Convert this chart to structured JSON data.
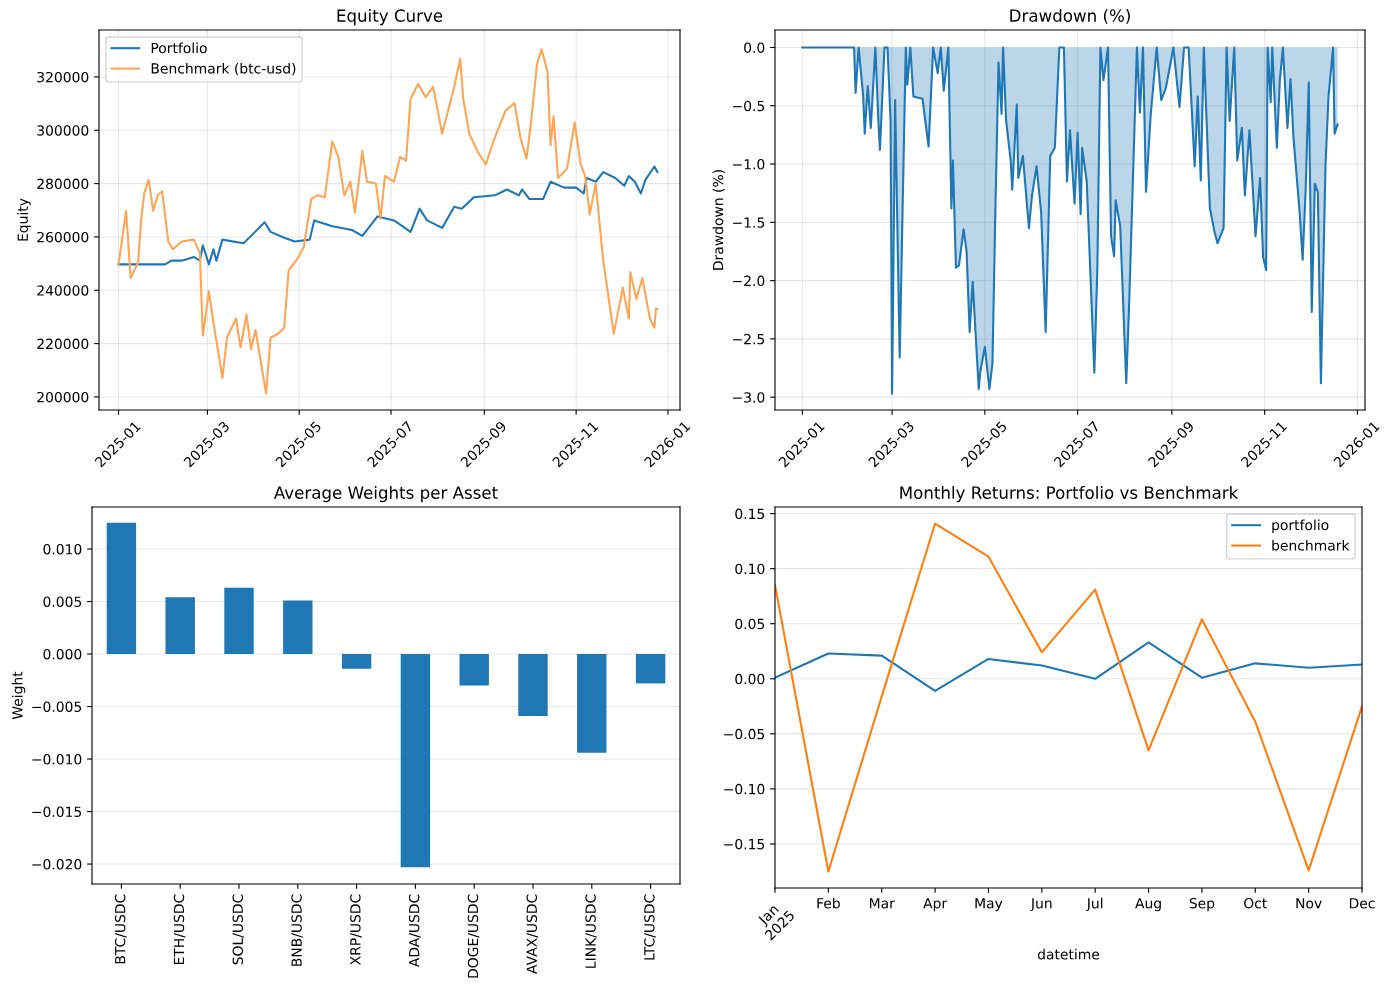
{
  "chart_data": [
    {
      "type": "line",
      "title": "Equity Curve",
      "ylabel": "Equity",
      "grid": true,
      "legend": "top left",
      "xlim": [
        "2024-12-19",
        "2026-01-09"
      ],
      "xticks": [
        "2025-01",
        "2025-03",
        "2025-05",
        "2025-07",
        "2025-09",
        "2025-11",
        "2026-01"
      ],
      "ylim": [
        195100,
        337600
      ],
      "yticks": [
        200000,
        220000,
        240000,
        260000,
        280000,
        300000,
        320000
      ],
      "series": [
        {
          "name": "Portfolio",
          "color": "#1f77b4",
          "x": [
            "2025-01-01",
            "2025-02-01",
            "2025-02-05",
            "2025-02-12",
            "2025-02-20",
            "2025-02-24",
            "2025-02-26",
            "2025-03-02",
            "2025-03-05",
            "2025-03-07",
            "2025-03-11",
            "2025-03-25",
            "2025-03-30",
            "2025-04-08",
            "2025-04-12",
            "2025-04-21",
            "2025-04-28",
            "2025-05-08",
            "2025-05-11",
            "2025-05-23",
            "2025-06-05",
            "2025-06-12",
            "2025-06-22",
            "2025-07-03",
            "2025-07-14",
            "2025-07-20",
            "2025-07-25",
            "2025-08-04",
            "2025-08-12",
            "2025-08-17",
            "2025-08-25",
            "2025-09-08",
            "2025-09-16",
            "2025-09-24",
            "2025-09-26",
            "2025-10-01",
            "2025-10-10",
            "2025-10-15",
            "2025-10-24",
            "2025-11-01",
            "2025-11-06",
            "2025-11-08",
            "2025-11-14",
            "2025-11-19",
            "2025-11-27",
            "2025-12-03",
            "2025-12-06",
            "2025-12-10",
            "2025-12-14",
            "2025-12-17",
            "2025-12-23",
            "2025-12-25"
          ],
          "values": [
            249700,
            249700,
            251100,
            251100,
            252500,
            251100,
            256900,
            249700,
            255400,
            251100,
            259000,
            257600,
            260400,
            265500,
            261900,
            259700,
            258300,
            259000,
            266200,
            264000,
            262600,
            260400,
            267700,
            266200,
            261900,
            270600,
            266200,
            263400,
            271300,
            270600,
            274900,
            275600,
            277800,
            275600,
            277800,
            274200,
            274200,
            280700,
            278500,
            278500,
            276300,
            282100,
            280700,
            284300,
            282100,
            279200,
            282800,
            280700,
            276300,
            281400,
            286400,
            284300
          ]
        },
        {
          "name": "Benchmark (btc-usd)",
          "color": "#ffa556",
          "x": [
            "2025-01-01",
            "2025-01-06",
            "2025-01-09",
            "2025-01-14",
            "2025-01-16",
            "2025-01-18",
            "2025-01-21",
            "2025-01-24",
            "2025-01-27",
            "2025-01-30",
            "2025-02-03",
            "2025-02-06",
            "2025-02-12",
            "2025-02-20",
            "2025-02-24",
            "2025-02-26",
            "2025-03-02",
            "2025-03-05",
            "2025-03-11",
            "2025-03-14",
            "2025-03-20",
            "2025-03-23",
            "2025-03-27",
            "2025-03-30",
            "2025-04-02",
            "2025-04-09",
            "2025-04-12",
            "2025-04-17",
            "2025-04-21",
            "2025-04-24",
            "2025-04-29",
            "2025-05-04",
            "2025-05-09",
            "2025-05-13",
            "2025-05-18",
            "2025-05-23",
            "2025-05-27",
            "2025-05-31",
            "2025-06-04",
            "2025-06-07",
            "2025-06-12",
            "2025-06-15",
            "2025-06-21",
            "2025-06-24",
            "2025-06-27",
            "2025-07-03",
            "2025-07-07",
            "2025-07-11",
            "2025-07-14",
            "2025-07-19",
            "2025-07-24",
            "2025-07-29",
            "2025-08-04",
            "2025-08-12",
            "2025-08-16",
            "2025-08-18",
            "2025-08-22",
            "2025-08-28",
            "2025-09-02",
            "2025-09-07",
            "2025-09-15",
            "2025-09-21",
            "2025-09-25",
            "2025-09-29",
            "2025-10-02",
            "2025-10-06",
            "2025-10-09",
            "2025-10-13",
            "2025-10-15",
            "2025-10-17",
            "2025-10-20",
            "2025-10-26",
            "2025-10-31",
            "2025-11-04",
            "2025-11-07",
            "2025-11-10",
            "2025-11-14",
            "2025-11-19",
            "2025-11-26",
            "2025-12-02",
            "2025-12-06",
            "2025-12-07",
            "2025-12-11",
            "2025-12-15",
            "2025-12-20",
            "2025-12-23",
            "2025-12-24",
            "2025-12-25"
          ],
          "values": [
            249700,
            269800,
            244600,
            250400,
            266200,
            276300,
            281400,
            269800,
            275600,
            277100,
            258300,
            255400,
            258300,
            259000,
            254000,
            223000,
            239600,
            228000,
            207100,
            222200,
            229400,
            218600,
            230900,
            217900,
            225100,
            201300,
            222200,
            223700,
            225900,
            247500,
            251100,
            256100,
            274200,
            275600,
            274900,
            295800,
            290000,
            275600,
            280700,
            269100,
            292200,
            280700,
            280000,
            266900,
            282800,
            280700,
            290000,
            288600,
            311700,
            317400,
            312400,
            316300,
            298700,
            316300,
            326800,
            311700,
            298700,
            291500,
            287200,
            295800,
            307300,
            310200,
            297200,
            289300,
            303000,
            324700,
            330400,
            321800,
            294400,
            305200,
            282100,
            285700,
            303000,
            287200,
            282800,
            268400,
            280000,
            251100,
            223700,
            241000,
            229400,
            246800,
            236700,
            244600,
            229400,
            225900,
            233100,
            233100
          ]
        }
      ]
    },
    {
      "type": "area",
      "title": "Drawdown (%)",
      "ylabel": "Drawdown (%)",
      "grid": true,
      "xlim": [
        "2024-12-14",
        "2026-01-06"
      ],
      "xticks": [
        "2025-01",
        "2025-03",
        "2025-05",
        "2025-07",
        "2025-09",
        "2025-11",
        "2026-01"
      ],
      "ylim": [
        -3.11,
        0.15
      ],
      "yticks": [
        {
          "value": -3.0,
          "label": "−3.0"
        },
        {
          "value": -2.5,
          "label": "−2.5"
        },
        {
          "value": -2.0,
          "label": "−2.0"
        },
        {
          "value": -1.5,
          "label": "−1.5"
        },
        {
          "value": -1.0,
          "label": "−1.0"
        },
        {
          "value": -0.5,
          "label": "−0.5"
        },
        {
          "value": 0.0,
          "label": "0.0"
        }
      ],
      "series": [
        {
          "color": "#1f77b4",
          "x": [
            "2025-01-01",
            "2025-02-04",
            "2025-02-05",
            "2025-02-07",
            "2025-02-10",
            "2025-02-11",
            "2025-02-13",
            "2025-02-15",
            "2025-02-18",
            "2025-02-20",
            "2025-02-21",
            "2025-02-24",
            "2025-02-26",
            "2025-02-28",
            "2025-03-01",
            "2025-03-03",
            "2025-03-06",
            "2025-03-10",
            "2025-03-11",
            "2025-03-13",
            "2025-03-15",
            "2025-03-21",
            "2025-03-25",
            "2025-03-28",
            "2025-03-31",
            "2025-04-02",
            "2025-04-04",
            "2025-04-07",
            "2025-04-09",
            "2025-04-10",
            "2025-04-12",
            "2025-04-14",
            "2025-04-17",
            "2025-04-19",
            "2025-04-21",
            "2025-04-23",
            "2025-04-27",
            "2025-04-28",
            "2025-05-01",
            "2025-05-04",
            "2025-05-06",
            "2025-05-08",
            "2025-05-10",
            "2025-05-12",
            "2025-05-13",
            "2025-05-15",
            "2025-05-18",
            "2025-05-19",
            "2025-05-22",
            "2025-05-23",
            "2025-05-26",
            "2025-05-30",
            "2025-06-01",
            "2025-06-04",
            "2025-06-07",
            "2025-06-10",
            "2025-06-13",
            "2025-06-16",
            "2025-06-19",
            "2025-06-22",
            "2025-06-24",
            "2025-06-26",
            "2025-06-29",
            "2025-07-01",
            "2025-07-03",
            "2025-07-04",
            "2025-07-07",
            "2025-07-12",
            "2025-07-14",
            "2025-07-16",
            "2025-07-18",
            "2025-07-21",
            "2025-07-23",
            "2025-07-25",
            "2025-07-26",
            "2025-07-29",
            "2025-08-02",
            "2025-08-04",
            "2025-08-07",
            "2025-08-09",
            "2025-08-11",
            "2025-08-13",
            "2025-08-15",
            "2025-08-18",
            "2025-08-22",
            "2025-08-25",
            "2025-08-28",
            "2025-09-02",
            "2025-09-06",
            "2025-09-09",
            "2025-09-12",
            "2025-09-16",
            "2025-09-18",
            "2025-09-20",
            "2025-09-22",
            "2025-09-26",
            "2025-09-29",
            "2025-10-01",
            "2025-10-05",
            "2025-10-07",
            "2025-10-09",
            "2025-10-12",
            "2025-10-14",
            "2025-10-17",
            "2025-10-19",
            "2025-10-22",
            "2025-10-26",
            "2025-10-29",
            "2025-10-31",
            "2025-11-02",
            "2025-11-03",
            "2025-11-05",
            "2025-11-06",
            "2025-11-09",
            "2025-11-11",
            "2025-11-13",
            "2025-11-16",
            "2025-11-18",
            "2025-11-20",
            "2025-11-24",
            "2025-11-26",
            "2025-11-28",
            "2025-11-30",
            "2025-12-02",
            "2025-12-04",
            "2025-12-06",
            "2025-12-08",
            "2025-12-11",
            "2025-12-13",
            "2025-12-16",
            "2025-12-17",
            "2025-12-19"
          ],
          "values": [
            0,
            0,
            -0.39,
            0,
            -0.42,
            -0.74,
            -0.33,
            -0.69,
            0,
            -0.63,
            -0.88,
            0,
            0,
            -0.63,
            -2.97,
            -0.45,
            -2.66,
            0,
            -0.32,
            0,
            -0.42,
            -0.44,
            -0.85,
            0,
            -0.22,
            0,
            -0.37,
            0,
            -1.38,
            -0.97,
            -1.89,
            -1.87,
            -1.56,
            -1.75,
            -2.44,
            -2.01,
            -2.93,
            -2.78,
            -2.57,
            -2.93,
            -2.71,
            -1.34,
            -0.13,
            -0.57,
            0,
            -0.63,
            -0.97,
            -1.22,
            -0.49,
            -1.12,
            -0.93,
            -1.55,
            -1.27,
            -1.02,
            -1.41,
            -2.44,
            -0.93,
            -0.86,
            0,
            0,
            -1.15,
            -0.71,
            -1.34,
            -0.73,
            -1.43,
            -0.86,
            -1.15,
            -2.79,
            -1.89,
            0,
            -0.28,
            0,
            -1.62,
            -1.79,
            -1.31,
            -1.53,
            -2.88,
            -2.16,
            -0.86,
            0,
            -0.56,
            0,
            -1.24,
            -0.59,
            0,
            -0.45,
            -0.35,
            0,
            -0.51,
            0,
            0,
            -1.02,
            -0.42,
            -1.14,
            0,
            -1.38,
            -1.58,
            -1.68,
            -1.55,
            0,
            -0.63,
            0,
            -0.97,
            -0.69,
            -1.27,
            -0.71,
            -1.62,
            -1.12,
            -1.8,
            -1.91,
            0,
            -0.47,
            0,
            -0.86,
            -0.28,
            0,
            -0.69,
            -0.27,
            -0.78,
            -1.41,
            -1.82,
            -1.21,
            -0.3,
            -2.27,
            -1.17,
            -1.24,
            -2.88,
            -1.02,
            -0.42,
            0,
            -0.74,
            -0.66
          ]
        }
      ]
    },
    {
      "type": "bar",
      "title": "Average Weights per Asset",
      "ylabel": "Weight",
      "grid": "y",
      "categories": [
        "BTC/USDC",
        "ETH/USDC",
        "SOL/USDC",
        "BNB/USDC",
        "XRP/USDC",
        "ADA/USDC",
        "DOGE/USDC",
        "AVAX/USDC",
        "LINK/USDC",
        "LTC/USDC"
      ],
      "values": [
        0.0125,
        0.0054,
        0.0063,
        0.0051,
        -0.0014,
        -0.0203,
        -0.003,
        -0.0059,
        -0.0094,
        -0.0028
      ],
      "color": "#1f77b4",
      "ylim": [
        -0.0219,
        0.014
      ],
      "yticks": [
        {
          "value": -0.02,
          "label": "−0.020"
        },
        {
          "value": -0.015,
          "label": "−0.015"
        },
        {
          "value": -0.01,
          "label": "−0.010"
        },
        {
          "value": -0.005,
          "label": "−0.005"
        },
        {
          "value": 0.0,
          "label": "0.000"
        },
        {
          "value": 0.005,
          "label": "0.005"
        },
        {
          "value": 0.01,
          "label": "0.010"
        }
      ]
    },
    {
      "type": "line",
      "title": "Monthly Returns: Portfolio vs Benchmark",
      "xlabel": "datetime",
      "grid": "y",
      "legend": "top right",
      "categories": [
        "Jan\n2025",
        "Feb",
        "Mar",
        "Apr",
        "May",
        "Jun",
        "Jul",
        "Aug",
        "Sep",
        "Oct",
        "Nov",
        "Dec"
      ],
      "ylim": [
        -0.19,
        0.156
      ],
      "yticks": [
        {
          "value": -0.15,
          "label": "−0.15"
        },
        {
          "value": -0.1,
          "label": "−0.10"
        },
        {
          "value": -0.05,
          "label": "−0.05"
        },
        {
          "value": 0.0,
          "label": "0.00"
        },
        {
          "value": 0.05,
          "label": "0.05"
        },
        {
          "value": 0.1,
          "label": "0.10"
        },
        {
          "value": 0.15,
          "label": "0.15"
        }
      ],
      "series": [
        {
          "name": "portfolio",
          "color": "#1f77b4",
          "values": [
            0.001,
            0.023,
            0.021,
            -0.011,
            0.018,
            0.012,
            0.0,
            0.033,
            0.001,
            0.014,
            0.01,
            0.013
          ]
        },
        {
          "name": "benchmark",
          "color": "#ff7f0e",
          "values": [
            0.085,
            -0.175,
            -0.016,
            0.141,
            0.111,
            0.024,
            0.081,
            -0.065,
            0.054,
            -0.039,
            -0.174,
            -0.025
          ]
        }
      ]
    }
  ]
}
